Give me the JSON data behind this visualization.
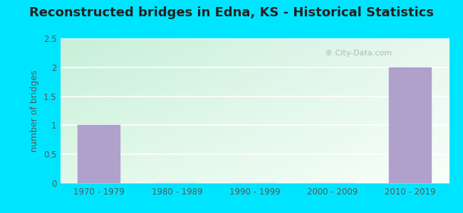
{
  "title": "Reconstructed bridges in Edna, KS - Historical Statistics",
  "categories": [
    "1970 - 1979",
    "1980 - 1989",
    "1990 - 1999",
    "2000 - 2009",
    "2010 - 2019"
  ],
  "values": [
    1,
    0,
    0,
    0,
    2
  ],
  "bar_color": "#b0a0cc",
  "bar_edge_color": "#b0a0cc",
  "ylabel": "number of bridges",
  "ylim": [
    0,
    2.5
  ],
  "yticks": [
    0,
    0.5,
    1,
    1.5,
    2,
    2.5
  ],
  "title_fontsize": 13,
  "ylabel_fontsize": 9,
  "background_outer": "#00e5ff",
  "bg_color_topleft": "#c8f0d8",
  "bg_color_topright": "#e8f8f0",
  "bg_color_bottomleft": "#e0f8e8",
  "bg_color_bottomright": "#f8fffc",
  "grid_color": "#ffffff",
  "watermark_text": "  City-Data.com",
  "watermark_icon": "©"
}
